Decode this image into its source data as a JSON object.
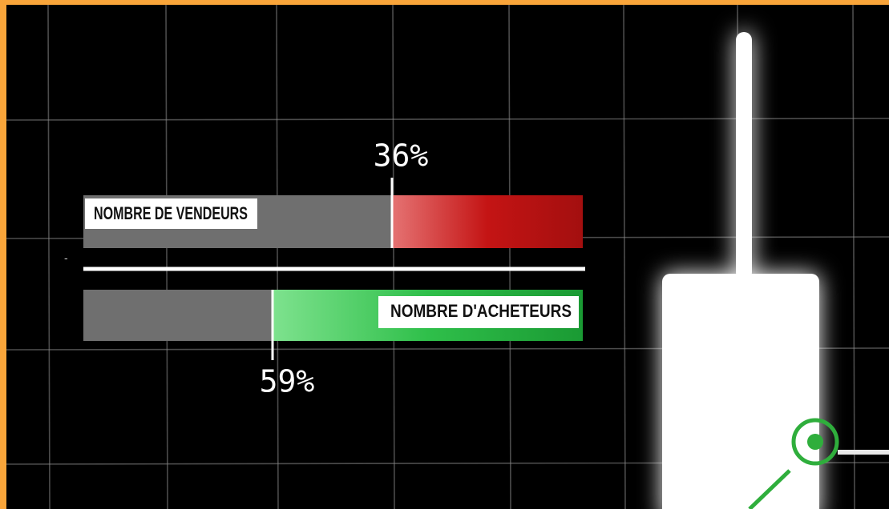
{
  "bars": [
    {
      "label": "NOMBRE DE VENDEURS",
      "value_label": "36%"
    },
    {
      "label": "NOMBRE D'ACHETEURS",
      "value_label": "59%"
    }
  ],
  "separator_mark": "-"
}
